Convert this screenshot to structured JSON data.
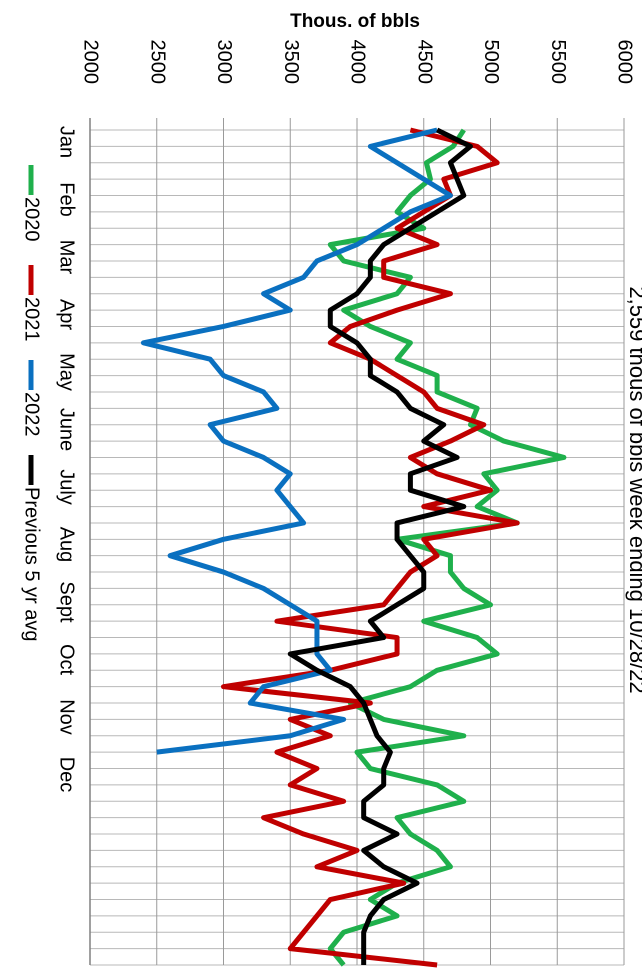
{
  "chart_data": {
    "type": "line",
    "title": "2,559 thous of bbls week ending 10/28/22",
    "y_label": "Thous. of bbls",
    "month_labels": [
      "Jan",
      "Feb",
      "Mar",
      "Apr",
      "May",
      "June",
      "July",
      "Aug",
      "Sept",
      "Oct",
      "Nov",
      "Dec"
    ],
    "x": [
      1,
      2,
      3,
      4,
      5,
      6,
      7,
      8,
      9,
      10,
      11,
      12,
      13,
      14,
      15,
      16,
      17,
      18,
      19,
      20,
      21,
      22,
      23,
      24,
      25,
      26,
      27,
      28,
      29,
      30,
      31,
      32,
      33,
      34,
      35,
      36,
      37,
      38,
      39,
      40,
      41,
      42,
      43,
      44,
      45,
      46,
      47,
      48,
      49,
      50,
      51,
      52
    ],
    "xlim": [
      1,
      52
    ],
    "ylim": [
      2000,
      6000
    ],
    "yticks": [
      2000,
      2500,
      3000,
      3500,
      4000,
      4500,
      5000,
      5500,
      6000
    ],
    "grid": true,
    "series": [
      {
        "name": "2020",
        "color": "#1fb04c",
        "values": [
          4800,
          4720,
          4520,
          4550,
          4400,
          4300,
          4500,
          3800,
          3900,
          4400,
          4300,
          3900,
          4100,
          4400,
          4300,
          4600,
          4600,
          4900,
          4850,
          5100,
          5550,
          4950,
          5050,
          4900,
          5200,
          4300,
          4700,
          4700,
          4800,
          5000,
          4500,
          4900,
          5050,
          4600,
          4400,
          3950,
          4200,
          4800,
          4000,
          4100,
          4600,
          4800,
          4300,
          4400,
          4600,
          4700,
          4300,
          4100,
          4300,
          3900,
          3800,
          3900
        ]
      },
      {
        "name": "2021",
        "color": "#c00000",
        "values": [
          4400,
          4900,
          5050,
          4650,
          4700,
          4500,
          4300,
          4600,
          4200,
          4200,
          4700,
          4300,
          3950,
          3800,
          4100,
          4300,
          4500,
          4600,
          4950,
          4700,
          4400,
          4600,
          5000,
          4500,
          5200,
          4500,
          4600,
          4400,
          4300,
          4200,
          3400,
          4300,
          4300,
          3800,
          3000,
          4100,
          3500,
          3800,
          3400,
          3700,
          3500,
          3900,
          3300,
          3600,
          4000,
          3700,
          4350,
          3800,
          3700,
          3600,
          3500,
          4600
        ]
      },
      {
        "name": "2022",
        "color": "#0a70c0",
        "values": [
          4600,
          4100,
          4300,
          4500,
          4700,
          4400,
          4200,
          4000,
          3700,
          3600,
          3300,
          3500,
          3000,
          2400,
          2900,
          3000,
          3300,
          3400,
          2900,
          3000,
          3300,
          3500,
          3400,
          3500,
          3600,
          3000,
          2600,
          3000,
          3300,
          3500,
          3700,
          3700,
          3700,
          3800,
          3300,
          3200,
          3900,
          3500,
          2500,
          null,
          null,
          null,
          null,
          null,
          null,
          null,
          null,
          null,
          null,
          null,
          null,
          null
        ]
      },
      {
        "name": "Previous 5 yr avg",
        "color": "#000000",
        "values": [
          4600,
          4850,
          4700,
          4750,
          4800,
          4600,
          4400,
          4200,
          4100,
          4100,
          4000,
          3800,
          3800,
          4000,
          4100,
          4100,
          4300,
          4400,
          4650,
          4500,
          4750,
          4400,
          4400,
          4800,
          4300,
          4300,
          4400,
          4500,
          4500,
          4300,
          4100,
          4200,
          3500,
          3700,
          3950,
          4050,
          4100,
          4150,
          4250,
          4200,
          4200,
          4050,
          4050,
          4300,
          4050,
          4200,
          4450,
          4200,
          4100,
          4050,
          4050,
          4050
        ]
      }
    ]
  }
}
